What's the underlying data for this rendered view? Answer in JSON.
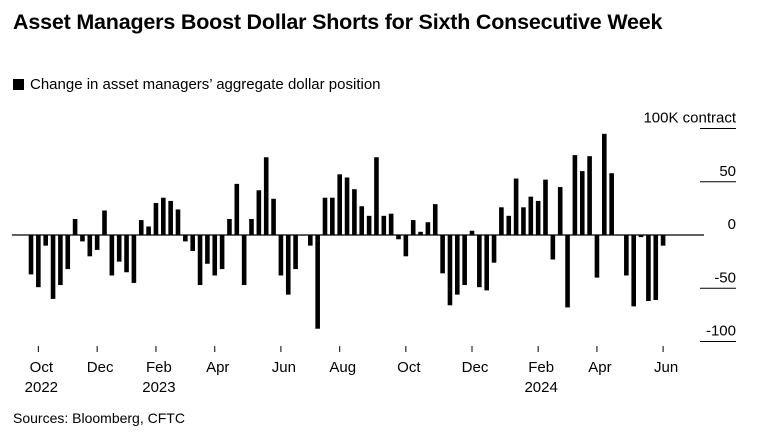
{
  "title": "Asset Managers Boost Dollar Shorts for Sixth Consecutive Week",
  "legend_label": "Change in asset managers’ aggregate dollar position",
  "source": "Sources: Bloomberg, CFTC",
  "colors": {
    "bars": "#000000",
    "gridline": "#000000",
    "text": "#000000"
  },
  "chart_data": {
    "type": "bar",
    "title": "Asset Managers Boost Dollar Shorts for Sixth Consecutive Week",
    "subtitle": "Change in asset managers’ aggregate dollar position",
    "ylabel": "100K contract",
    "ylim": [
      -100,
      100
    ],
    "yticks": [
      {
        "value": 100,
        "label": "100K contract"
      },
      {
        "value": 50,
        "label": "50"
      },
      {
        "value": 0,
        "label": "0"
      },
      {
        "value": -50,
        "label": "-50"
      },
      {
        "value": -100,
        "label": "-100"
      }
    ],
    "xticks": [
      {
        "index": 1,
        "label": "Oct",
        "sublabel": "2022"
      },
      {
        "index": 9,
        "label": "Dec",
        "sublabel": ""
      },
      {
        "index": 17,
        "label": "Feb",
        "sublabel": "2023"
      },
      {
        "index": 25,
        "label": "Apr",
        "sublabel": ""
      },
      {
        "index": 34,
        "label": "Jun",
        "sublabel": ""
      },
      {
        "index": 42,
        "label": "Aug",
        "sublabel": ""
      },
      {
        "index": 51,
        "label": "Oct",
        "sublabel": ""
      },
      {
        "index": 60,
        "label": "Dec",
        "sublabel": ""
      },
      {
        "index": 69,
        "label": "Feb",
        "sublabel": "2024"
      },
      {
        "index": 77,
        "label": "Apr",
        "sublabel": ""
      },
      {
        "index": 86,
        "label": "Jun",
        "sublabel": ""
      }
    ],
    "series": [
      {
        "name": "Change in asset managers’ aggregate dollar position",
        "values": [
          -37,
          -49,
          -10,
          -60,
          -47,
          -32,
          15,
          -6,
          -20,
          -14,
          23,
          -38,
          -25,
          -35,
          -45,
          14,
          8,
          30,
          35,
          32,
          24,
          -6,
          -15,
          -47,
          -27,
          -38,
          -32,
          15,
          48,
          -47,
          15,
          42,
          73,
          34,
          -38,
          -56,
          -32,
          0,
          -10,
          -88,
          35,
          35,
          57,
          54,
          43,
          27,
          18,
          73,
          18,
          20,
          -4,
          -20,
          14,
          3,
          12,
          29,
          -36,
          -66,
          -56,
          -47,
          4,
          -49,
          -52,
          -26,
          26,
          18,
          53,
          26,
          36,
          32,
          52,
          -23,
          45,
          -68,
          75,
          60,
          74,
          -40,
          95,
          58,
          0,
          -38,
          -67,
          -2,
          -62,
          -61,
          -10
        ]
      }
    ]
  }
}
